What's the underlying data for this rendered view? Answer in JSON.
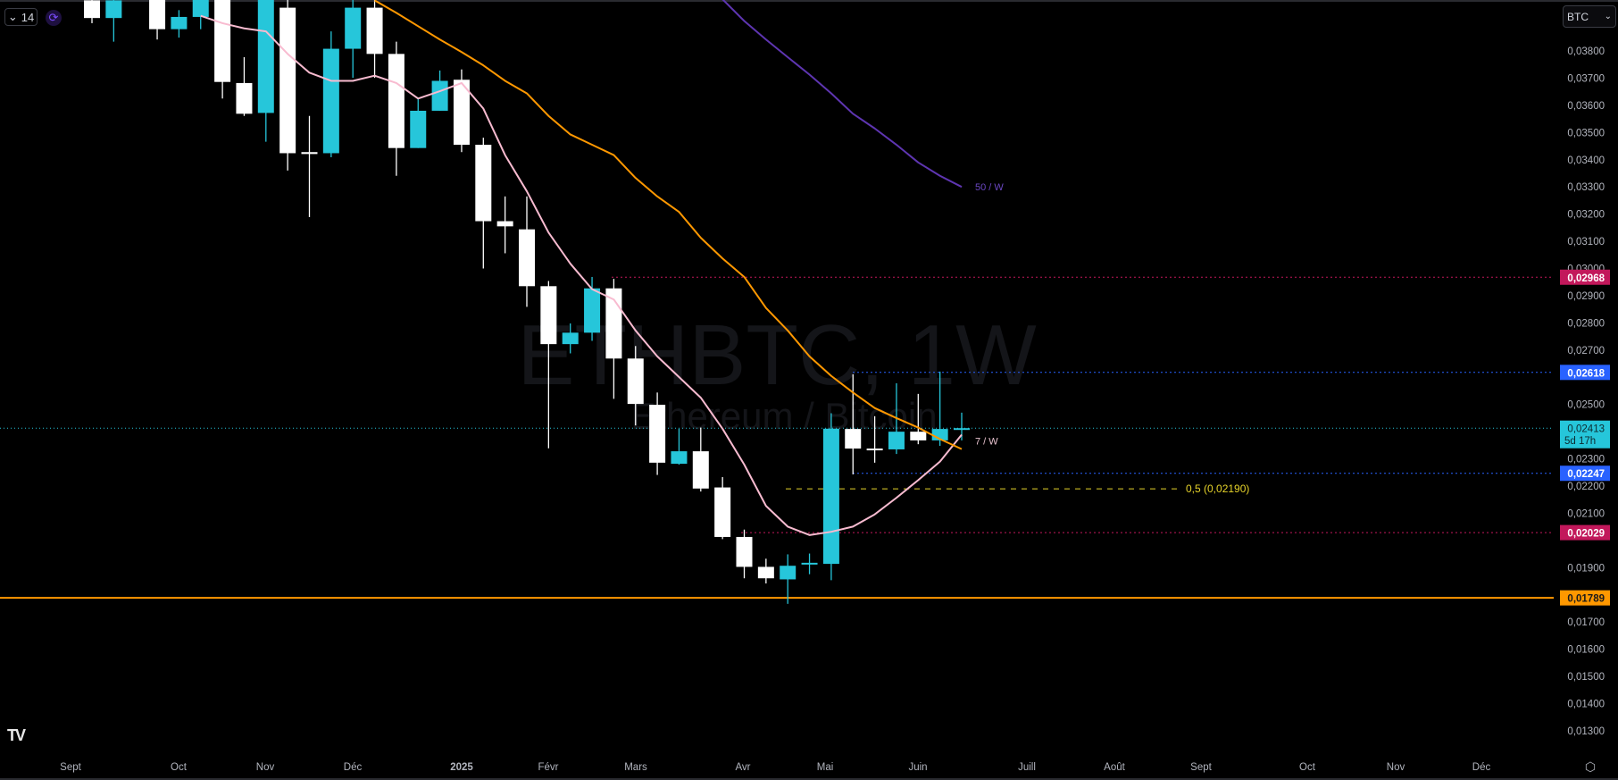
{
  "toolbar": {
    "interval_value": "14",
    "currency": "BTC"
  },
  "watermark": {
    "symbol": "ETHBTC, 1W",
    "description": "Ethereum / Bitcoin"
  },
  "colors": {
    "up": "#26C6DA",
    "down": "#FFFFFF",
    "ma7": "#F8BBD0",
    "ma_orange": "#FF9800",
    "ma50": "#5E35B1",
    "red_level": "#C2185B",
    "blue_level": "#2962FF",
    "support": "#FF9800",
    "fib": "#E6D32A"
  },
  "chart_data": {
    "type": "candlestick",
    "title": "ETHBTC, 1W",
    "ylabel": "BTC",
    "ylim": [
      0.01215,
      0.03987
    ],
    "y_ticks": [
      "0,03800",
      "0,03700",
      "0,03600",
      "0,03500",
      "0,03400",
      "0,03300",
      "0,03200",
      "0,03100",
      "0,03000",
      "0,02900",
      "0,02800",
      "0,02700",
      "0,02500",
      "0,02300",
      "0,02200",
      "0,02100",
      "0,01900",
      "0,01700",
      "0,01600",
      "0,01500",
      "0,01400",
      "0,01300"
    ],
    "y_tick_values": [
      0.038,
      0.037,
      0.036,
      0.035,
      0.034,
      0.033,
      0.032,
      0.031,
      0.03,
      0.029,
      0.028,
      0.027,
      0.025,
      0.023,
      0.022,
      0.021,
      0.019,
      0.017,
      0.016,
      0.015,
      0.014,
      0.013
    ],
    "x_ticks": [
      "Sept",
      "Oct",
      "Nov",
      "Déc",
      "2025",
      "Févr",
      "Mars",
      "Avr",
      "Mai",
      "Juin",
      "Juill",
      "Août",
      "Sept",
      "Oct",
      "Nov",
      "Déc"
    ],
    "candles_ohlc": [
      [
        0.03986,
        0.0399,
        0.03902,
        0.03921
      ],
      [
        0.03921,
        0.0399,
        0.03834,
        0.03986
      ],
      [
        0.0405,
        0.0408,
        0.0399,
        0.04
      ],
      [
        0.0399,
        0.04,
        0.03842,
        0.0388
      ],
      [
        0.0388,
        0.0395,
        0.03849,
        0.03925
      ],
      [
        0.03925,
        0.04,
        0.0388,
        0.0399
      ],
      [
        0.0399,
        0.04,
        0.03625,
        0.03686
      ],
      [
        0.03682,
        0.03777,
        0.03561,
        0.03569
      ],
      [
        0.03572,
        0.04,
        0.03466,
        0.0399
      ],
      [
        0.03959,
        0.0399,
        0.0336,
        0.03424
      ],
      [
        0.03428,
        0.03561,
        0.03189,
        0.03421
      ],
      [
        0.03424,
        0.03872,
        0.03409,
        0.03808
      ],
      [
        0.03808,
        0.0399,
        0.03701,
        0.03959
      ],
      [
        0.03959,
        0.0399,
        0.03701,
        0.03789
      ],
      [
        0.03789,
        0.03834,
        0.03341,
        0.03443
      ],
      [
        0.03443,
        0.03625,
        0.03443,
        0.0358
      ],
      [
        0.0358,
        0.03728,
        0.0358,
        0.0369
      ],
      [
        0.03694,
        0.03732,
        0.03428,
        0.03455
      ],
      [
        0.03455,
        0.03481,
        0.03,
        0.03174
      ],
      [
        0.03174,
        0.03265,
        0.03056,
        0.03155
      ],
      [
        0.03144,
        0.03265,
        0.02859,
        0.02935
      ],
      [
        0.02935,
        0.02954,
        0.02339,
        0.02722
      ],
      [
        0.02722,
        0.02798,
        0.02688,
        0.02764
      ],
      [
        0.02764,
        0.02969,
        0.02734,
        0.02927
      ],
      [
        0.02927,
        0.02962,
        0.02521,
        0.02669
      ],
      [
        0.02669,
        0.02715,
        0.02423,
        0.02502
      ],
      [
        0.02499,
        0.02544,
        0.02241,
        0.02286
      ],
      [
        0.02282,
        0.02411,
        0.02279,
        0.02328
      ],
      [
        0.02328,
        0.02415,
        0.0218,
        0.02191
      ],
      [
        0.02195,
        0.02233,
        0.02005,
        0.02013
      ],
      [
        0.02013,
        0.0204,
        0.01861,
        0.01903
      ],
      [
        0.01903,
        0.01933,
        0.01842,
        0.01861
      ],
      [
        0.01857,
        0.01949,
        0.01767,
        0.01907
      ],
      [
        0.01914,
        0.01952,
        0.01876,
        0.01918
      ],
      [
        0.01914,
        0.02468,
        0.01854,
        0.02411
      ],
      [
        0.0241,
        0.02611,
        0.02243,
        0.02338
      ],
      [
        0.02338,
        0.02457,
        0.02286,
        0.02336
      ],
      [
        0.02335,
        0.02578,
        0.02318,
        0.024
      ],
      [
        0.024,
        0.02539,
        0.02354,
        0.02368
      ],
      [
        0.02368,
        0.02621,
        0.02348,
        0.0241
      ],
      [
        0.02411,
        0.0247,
        0.02368,
        0.02413
      ]
    ],
    "series": [
      {
        "name": "7 / W",
        "label": "7 / W",
        "values": [
          null,
          null,
          null,
          null,
          null,
          0.03929,
          0.03902,
          0.03883,
          0.03872,
          0.03789,
          0.0372,
          0.0369,
          0.0369,
          0.03709,
          0.03682,
          0.03625,
          0.03652,
          0.03682,
          0.03588,
          0.03417,
          0.03284,
          0.03132,
          0.03018,
          0.02924,
          0.02886,
          0.02772,
          0.02677,
          0.02601,
          0.02525,
          0.02411,
          0.02279,
          0.02127,
          0.02051,
          0.0202,
          0.02032,
          0.02051,
          0.02096,
          0.02157,
          0.02222,
          0.0229,
          0.02389
        ]
      },
      {
        "name": "MA orange",
        "values": [
          null,
          null,
          null,
          null,
          null,
          null,
          null,
          null,
          null,
          null,
          null,
          null,
          null,
          0.03986,
          0.0394,
          0.03891,
          0.03842,
          0.03796,
          0.03747,
          0.0369,
          0.03644,
          0.03561,
          0.03493,
          0.03455,
          0.03417,
          0.03333,
          0.03265,
          0.03208,
          0.03113,
          0.03037,
          0.02969,
          0.02855,
          0.02772,
          0.02677,
          0.02605,
          0.02544,
          0.02487,
          0.0245,
          0.02415,
          0.02373,
          0.02336
        ]
      },
      {
        "name": "50 / W",
        "label": "50 / W",
        "values": [
          null,
          null,
          null,
          null,
          null,
          null,
          null,
          null,
          null,
          null,
          null,
          null,
          null,
          null,
          null,
          null,
          null,
          null,
          null,
          null,
          null,
          null,
          null,
          null,
          null,
          null,
          null,
          null,
          null,
          0.0399,
          0.0391,
          0.03842,
          0.03777,
          0.03713,
          0.03644,
          0.03569,
          0.03515,
          0.03455,
          0.0339,
          0.03341,
          0.033
        ]
      }
    ],
    "levels": [
      {
        "name": "resistance-high",
        "value": 0.02968,
        "label": "0,02968",
        "color": "#C2185B"
      },
      {
        "name": "range-high",
        "value": 0.02618,
        "label": "0,02618",
        "color": "#2962FF"
      },
      {
        "name": "range-low",
        "value": 0.02247,
        "label": "0,02247",
        "color": "#2962FF"
      },
      {
        "name": "support-red",
        "value": 0.02029,
        "label": "0,02029",
        "color": "#C2185B"
      },
      {
        "name": "support-orange",
        "value": 0.01789,
        "label": "0,01789",
        "color": "#FF9800"
      }
    ],
    "current_price": {
      "value": 0.02413,
      "label": "0,02413",
      "countdown": "5d 17h"
    },
    "fib_level": {
      "value": 0.0219,
      "label": "0,5 (0,02190)"
    }
  }
}
